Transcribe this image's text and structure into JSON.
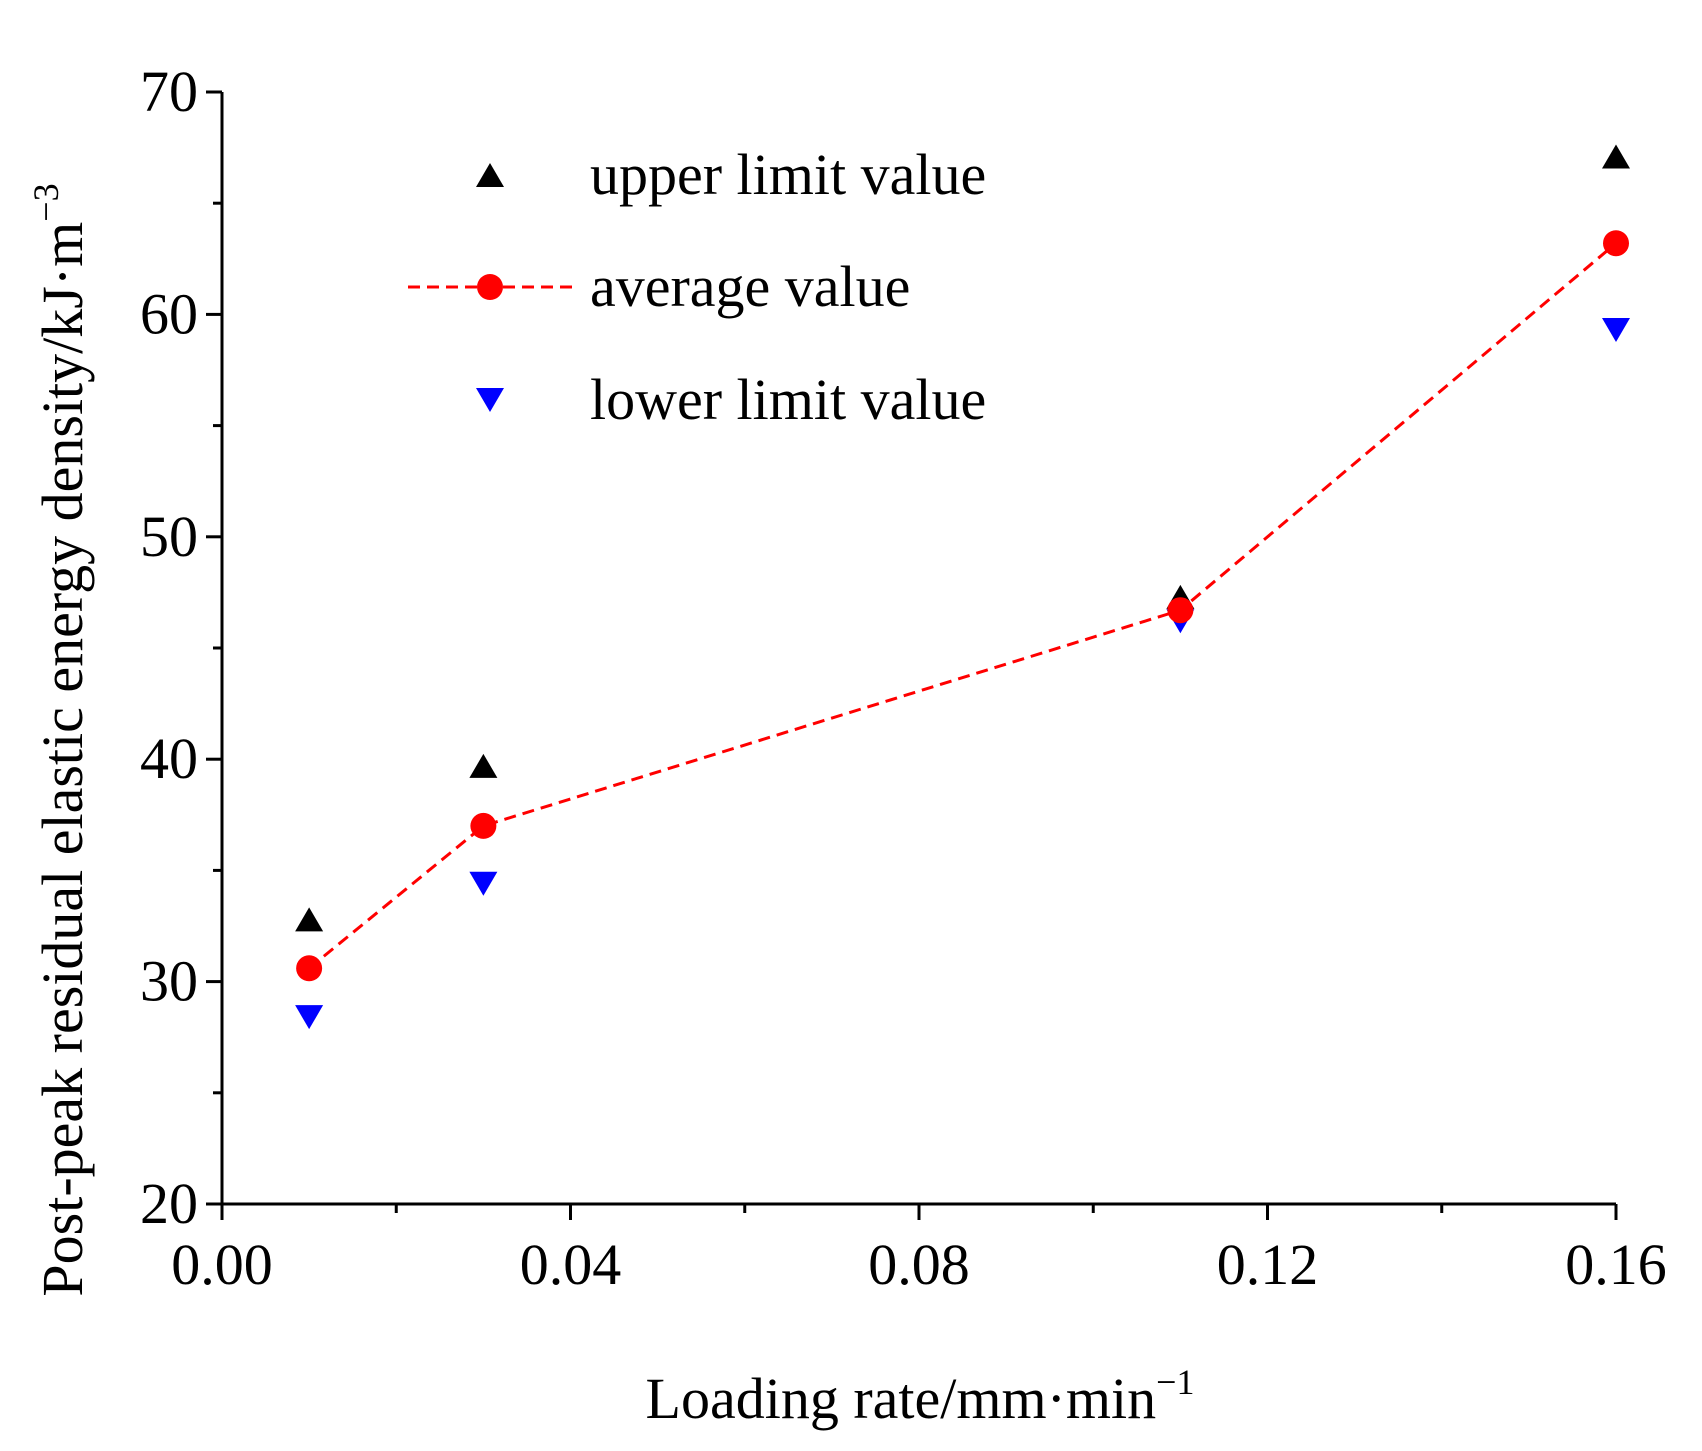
{
  "chart_data": {
    "type": "scatter",
    "title": "",
    "xlabel": {
      "base": "Loading rate/mm·min",
      "sup": "−1"
    },
    "ylabel": {
      "base": "Post-peak residual elastic energy density/kJ·m",
      "sup": "−3"
    },
    "xlim": [
      0.0,
      0.16
    ],
    "ylim": [
      20,
      70
    ],
    "x_ticks": [
      0.0,
      0.04,
      0.08,
      0.12,
      0.16
    ],
    "x_tick_labels": [
      "0.00",
      "0.04",
      "0.08",
      "0.12",
      "0.16"
    ],
    "x_minor_ticks": [
      0.02,
      0.06,
      0.1,
      0.14
    ],
    "y_ticks": [
      20,
      30,
      40,
      50,
      60,
      70
    ],
    "y_tick_labels": [
      "20",
      "30",
      "40",
      "50",
      "60",
      "70"
    ],
    "y_minor_ticks": [
      25,
      35,
      45,
      55,
      65
    ],
    "grid": false,
    "legend_position": "top-left",
    "x": [
      0.01,
      0.03,
      0.11,
      0.16
    ],
    "series": [
      {
        "name": "upper limit value",
        "marker": "triangle-up",
        "line": "none",
        "color": "#000000",
        "values": [
          32.8,
          39.7,
          47.3,
          67.1
        ]
      },
      {
        "name": "average value",
        "marker": "circle",
        "line": "dashed",
        "color": "#ff0000",
        "values": [
          30.6,
          37.0,
          46.7,
          63.2
        ]
      },
      {
        "name": "lower limit value",
        "marker": "triangle-down",
        "line": "none",
        "color": "#0000ff",
        "values": [
          28.4,
          34.4,
          46.2,
          59.3
        ]
      }
    ]
  }
}
